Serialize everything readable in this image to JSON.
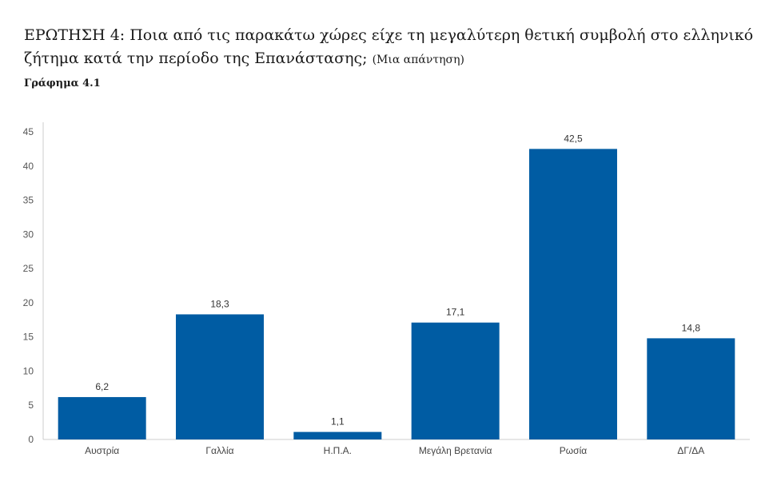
{
  "header": {
    "question": "ΕΡΩΤΗΣΗ 4: Ποια από τις παρακάτω χώρες είχε τη μεγαλύτερη θετική συμβολή στο ελληνικό ζήτημα κατά την περίοδο της Επανάστασης;",
    "note": "(Μια απάντηση)",
    "figure_label": "Γράφημα 4.1"
  },
  "chart_data": {
    "type": "bar",
    "categories": [
      "Αυστρία",
      "Γαλλία",
      "Η.Π.Α.",
      "Μεγάλη Βρετανία",
      "Ρωσία",
      "ΔΓ/ΔΑ"
    ],
    "values": [
      6.2,
      18.3,
      1.1,
      17.1,
      42.5,
      14.8
    ],
    "value_labels": [
      "6,2",
      "18,3",
      "1,1",
      "17,1",
      "42,5",
      "14,8"
    ],
    "yticks": [
      0,
      5,
      10,
      15,
      20,
      25,
      30,
      35,
      40,
      45
    ],
    "ylim": [
      0,
      45
    ],
    "grid": false,
    "colors": {
      "bar": "#005ca3",
      "axis": "#cccccc"
    }
  }
}
